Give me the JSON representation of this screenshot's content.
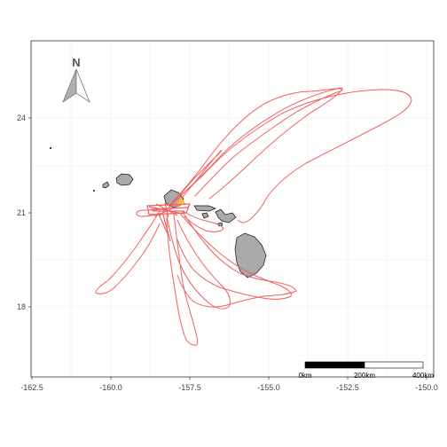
{
  "map": {
    "x_axis": {
      "ticks": [
        "-162.5",
        "-160.0",
        "-157.5",
        "-155.0",
        "-152.5",
        "-150.0"
      ]
    },
    "y_axis": {
      "ticks": [
        "24",
        "21",
        "18"
      ]
    },
    "north_arrow": {
      "label": "N"
    },
    "scale_bar": {
      "labels": [
        "0km",
        "200km",
        "400km"
      ]
    },
    "colors": {
      "track": "#f06060",
      "land": "#aaaaaa",
      "land_outline": "#111111",
      "deployment_marker": "#f5b942",
      "panel_border": "#333333",
      "grid": "#ebebeb"
    },
    "layers": [
      "animal-tracks",
      "main-hawaiian-islands",
      "deployment-site-marker"
    ]
  }
}
